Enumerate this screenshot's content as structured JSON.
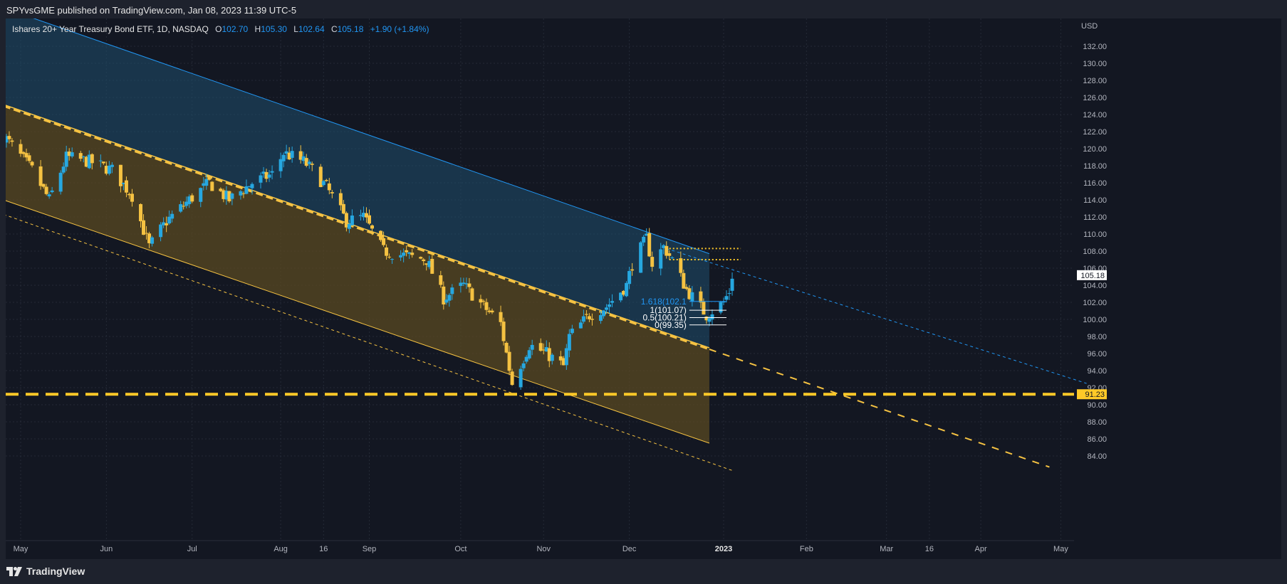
{
  "header": {
    "published_text": "SPYvsGME published on TradingView.com, Jan 08, 2023 11:39 UTC-5"
  },
  "legend": {
    "symbol_text": "Ishares 20+ Year Treasury Bond ETF, 1D, NASDAQ",
    "o_label": "O",
    "o_value": "102.70",
    "h_label": "H",
    "h_value": "105.30",
    "l_label": "L",
    "l_value": "102.64",
    "c_label": "C",
    "c_value": "105.18",
    "change": "+1.90 (+1.84%)"
  },
  "footer": {
    "brand": "TradingView"
  },
  "colors": {
    "background": "#131722",
    "up_candle": "#26a7e0",
    "down_candle": "#f5c242",
    "upper_channel_fill": "#1f4e6e",
    "lower_channel_fill": "#5a4a22",
    "channel_line": "#f5c242",
    "resistance_line": "#2196f3",
    "horizontal_level": "#ffc928",
    "price_tag_current": "#ffffff",
    "price_tag_level": "#ffc928"
  },
  "chart_data": {
    "type": "candlestick",
    "symbol": "Ishares 20+ Year Treasury Bond ETF",
    "interval": "1D",
    "exchange": "NASDAQ",
    "currency": "USD",
    "ylim": [
      83,
      134
    ],
    "y_ticks": [
      "84.00",
      "86.00",
      "88.00",
      "90.00",
      "92.00",
      "94.00",
      "96.00",
      "98.00",
      "100.00",
      "102.00",
      "104.00",
      "106.00",
      "108.00",
      "110.00",
      "112.00",
      "114.00",
      "116.00",
      "118.00",
      "120.00",
      "122.00",
      "124.00",
      "126.00",
      "128.00",
      "130.00",
      "132.00"
    ],
    "x_ticks": [
      {
        "label": "May",
        "date": "2022-05-02"
      },
      {
        "label": "Jun",
        "date": "2022-06-01"
      },
      {
        "label": "Jul",
        "date": "2022-07-01"
      },
      {
        "label": "Aug",
        "date": "2022-08-01"
      },
      {
        "label": "16",
        "date": "2022-08-16"
      },
      {
        "label": "Sep",
        "date": "2022-09-01"
      },
      {
        "label": "Oct",
        "date": "2022-10-03"
      },
      {
        "label": "Nov",
        "date": "2022-11-01"
      },
      {
        "label": "Dec",
        "date": "2022-12-01"
      },
      {
        "label": "2023",
        "date": "2023-01-03"
      },
      {
        "label": "Feb",
        "date": "2023-02-01"
      },
      {
        "label": "Mar",
        "date": "2023-03-01"
      },
      {
        "label": "16",
        "date": "2023-03-16"
      },
      {
        "label": "Apr",
        "date": "2023-04-03"
      },
      {
        "label": "May",
        "date": "2023-05-01"
      }
    ],
    "last_price_label": "105.18",
    "level_label": "91.23",
    "close_path": [
      {
        "date": "2022-04-26",
        "close": 121.5
      },
      {
        "date": "2022-05-06",
        "close": 117.5
      },
      {
        "date": "2022-05-12",
        "close": 114.0
      },
      {
        "date": "2022-05-18",
        "close": 119.0
      },
      {
        "date": "2022-05-26",
        "close": 118.5
      },
      {
        "date": "2022-06-03",
        "close": 117.5
      },
      {
        "date": "2022-06-10",
        "close": 114.5
      },
      {
        "date": "2022-06-16",
        "close": 108.5
      },
      {
        "date": "2022-06-22",
        "close": 111.5
      },
      {
        "date": "2022-06-30",
        "close": 114.0
      },
      {
        "date": "2022-07-07",
        "close": 116.0
      },
      {
        "date": "2022-07-14",
        "close": 114.0
      },
      {
        "date": "2022-07-22",
        "close": 116.0
      },
      {
        "date": "2022-07-29",
        "close": 117.0
      },
      {
        "date": "2022-08-02",
        "close": 119.5
      },
      {
        "date": "2022-08-09",
        "close": 118.5
      },
      {
        "date": "2022-08-12",
        "close": 117.5
      },
      {
        "date": "2022-08-17",
        "close": 115.5
      },
      {
        "date": "2022-08-24",
        "close": 111.5
      },
      {
        "date": "2022-08-30",
        "close": 112.0
      },
      {
        "date": "2022-09-06",
        "close": 108.0
      },
      {
        "date": "2022-09-13",
        "close": 107.5
      },
      {
        "date": "2022-09-21",
        "close": 107.0
      },
      {
        "date": "2022-09-27",
        "close": 102.5
      },
      {
        "date": "2022-10-04",
        "close": 104.0
      },
      {
        "date": "2022-10-11",
        "close": 101.5
      },
      {
        "date": "2022-10-17",
        "close": 99.5
      },
      {
        "date": "2022-10-21",
        "close": 92.5
      },
      {
        "date": "2022-10-27",
        "close": 97.0
      },
      {
        "date": "2022-11-02",
        "close": 96.0
      },
      {
        "date": "2022-11-08",
        "close": 94.5
      },
      {
        "date": "2022-11-10",
        "close": 98.0
      },
      {
        "date": "2022-11-17",
        "close": 100.5
      },
      {
        "date": "2022-11-23",
        "close": 101.5
      },
      {
        "date": "2022-11-30",
        "close": 104.0
      },
      {
        "date": "2022-12-02",
        "close": 106.5
      },
      {
        "date": "2022-12-07",
        "close": 109.5
      },
      {
        "date": "2022-12-09",
        "close": 106.5
      },
      {
        "date": "2022-12-13",
        "close": 108.5
      },
      {
        "date": "2022-12-16",
        "close": 107.0
      },
      {
        "date": "2022-12-21",
        "close": 103.5
      },
      {
        "date": "2022-12-28",
        "close": 100.5
      },
      {
        "date": "2022-12-30",
        "close": 101.0
      },
      {
        "date": "2023-01-03",
        "close": 102.0
      },
      {
        "date": "2023-01-05",
        "close": 103.3
      },
      {
        "date": "2023-01-06",
        "close": 105.18
      }
    ],
    "fib_levels": [
      {
        "label": "1.618(102.1",
        "value": 102.1,
        "color": "#2196f3"
      },
      {
        "label": "1(101.07)",
        "value": 101.07,
        "color": "#ffffff"
      },
      {
        "label": "0.5(100.21)",
        "value": 100.21,
        "color": "#ffffff"
      },
      {
        "label": "0(99.35)",
        "value": 99.35,
        "color": "#ffffff"
      }
    ],
    "channel": {
      "midline": [
        {
          "date": "2022-04-26",
          "price": 125.0
        },
        {
          "date": "2022-12-29",
          "price": 96.5
        }
      ],
      "lower": [
        {
          "date": "2022-04-26",
          "price": 114.0
        },
        {
          "date": "2022-12-29",
          "price": 85.5
        }
      ],
      "upper": [
        {
          "date": "2022-04-26",
          "price": 136.5
        },
        {
          "date": "2022-12-29",
          "price": 107.7
        }
      ],
      "outer_lower_dotted": [
        {
          "date": "2022-04-26",
          "price": 112.3
        },
        {
          "date": "2023-01-06",
          "price": 82.3
        }
      ],
      "projection_dashed": [
        {
          "date": "2022-12-29",
          "price": 96.5
        },
        {
          "date": "2023-04-27",
          "price": 82.7
        }
      ],
      "resistance_extension_dotted": [
        {
          "date": "2022-12-14",
          "price": 108.3
        },
        {
          "date": "2023-05-10",
          "price": 92.5
        }
      ]
    },
    "horizontal_level": {
      "value": 91.23,
      "style": "dashed"
    },
    "grid": true,
    "legend_position": "top-left"
  }
}
